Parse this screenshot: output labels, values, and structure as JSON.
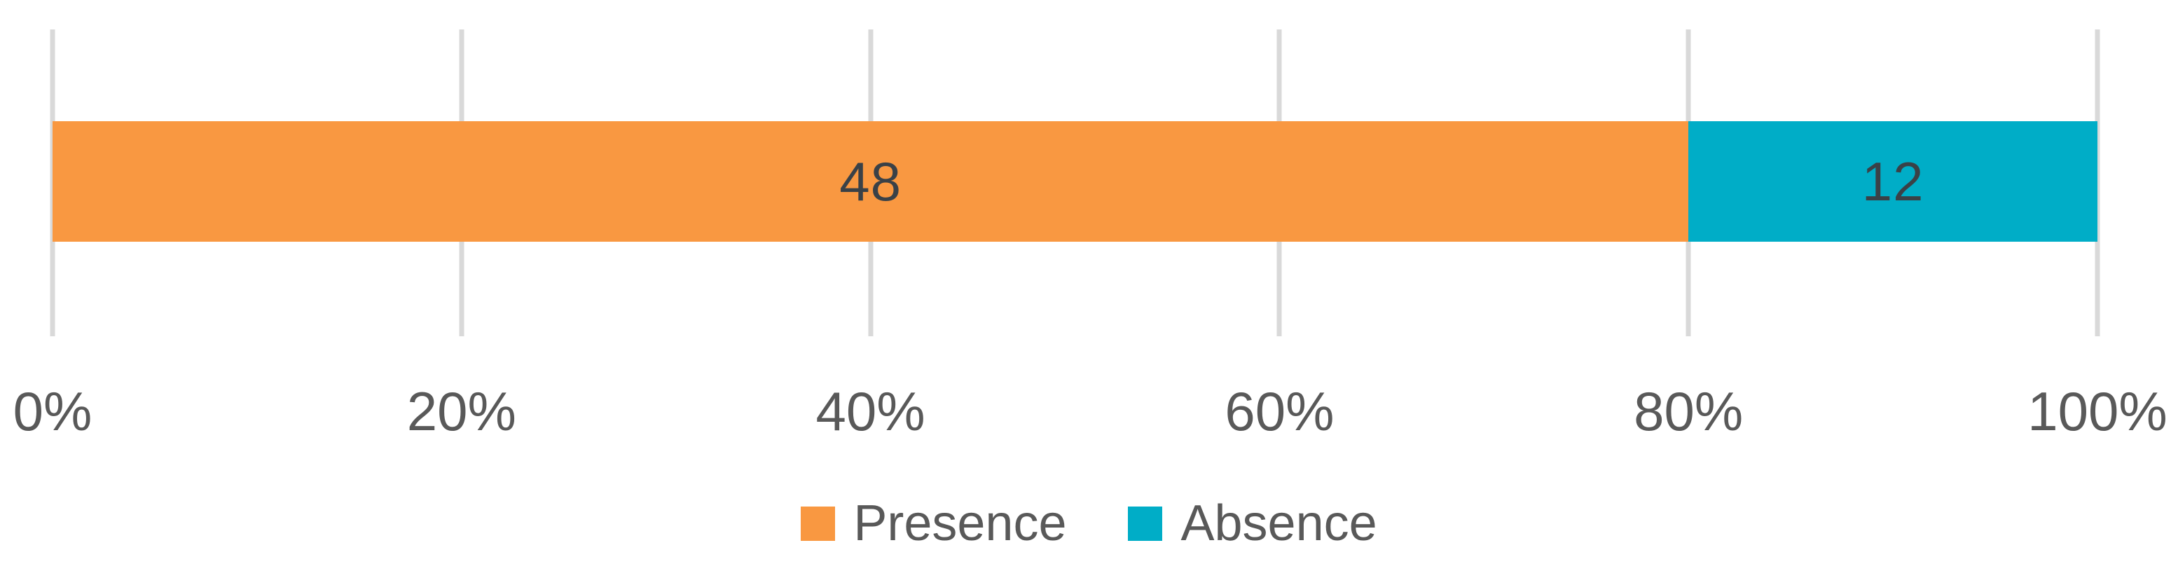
{
  "chart_data": {
    "type": "bar",
    "orientation": "horizontal",
    "stacked": true,
    "percent_stacked": true,
    "title": "",
    "categories": [
      ""
    ],
    "series": [
      {
        "name": "Presence",
        "values": [
          48
        ],
        "color": "#F99841"
      },
      {
        "name": "Absence",
        "values": [
          12
        ],
        "color": "#00ADC7"
      }
    ],
    "data_labels": [
      "48",
      "12"
    ],
    "x_axis": {
      "ticks": [
        "0%",
        "20%",
        "40%",
        "60%",
        "80%",
        "100%"
      ],
      "range_percent": [
        0,
        100
      ],
      "gridlines": true
    },
    "legend_position": "bottom",
    "colors": {
      "gridline": "#D9D9D9",
      "axis_text": "#595959",
      "legend_text": "#595959",
      "data_label_text": "#3A4147",
      "background": "#FFFFFF"
    }
  }
}
